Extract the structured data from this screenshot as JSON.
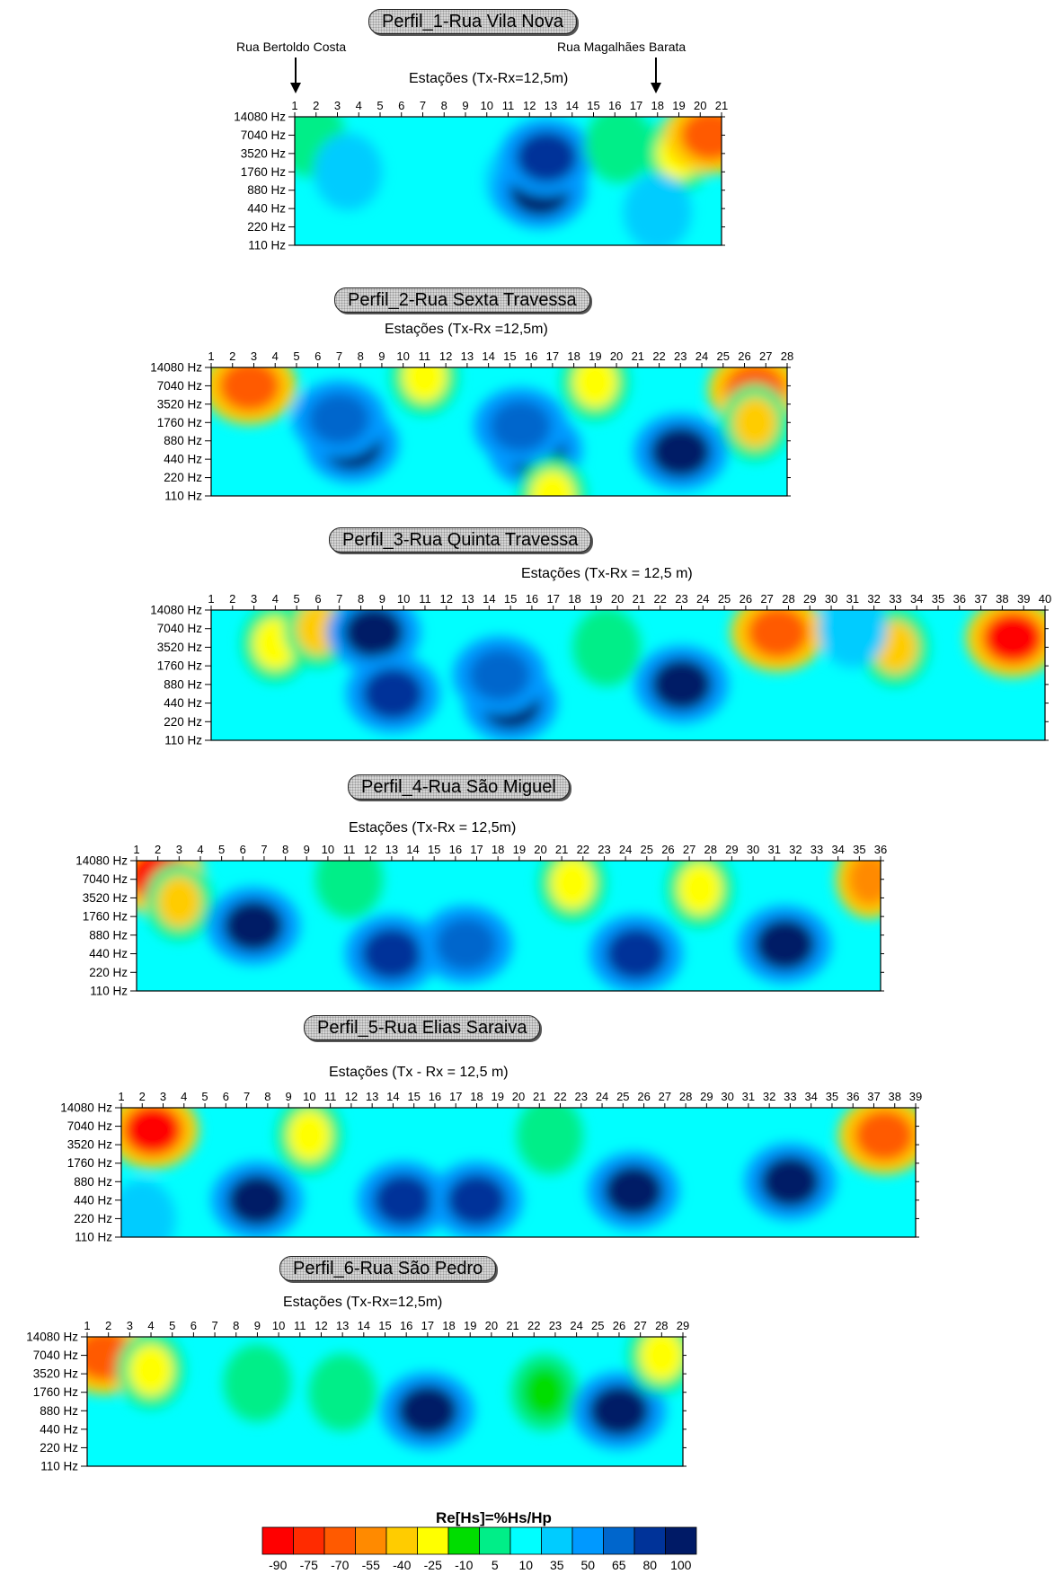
{
  "legend": {
    "title": "Re[Hs]=%Hs/Hp",
    "ticks": [
      "-90",
      "-75",
      "-70",
      "-55",
      "-40",
      "-25",
      "-10",
      "5",
      "10",
      "35",
      "50",
      "65",
      "80",
      "100"
    ],
    "colors": [
      "#ff0000",
      "#ff2b00",
      "#ff5a00",
      "#ff8a00",
      "#ffcc00",
      "#ffff00",
      "#00dd00",
      "#00ee88",
      "#00ffff",
      "#00ccff",
      "#0099ff",
      "#0066cc",
      "#003399",
      "#001a66"
    ]
  },
  "chart_data": [
    {
      "type": "heatmap",
      "title": "Perfil_1-Rua Vila Nova",
      "xlabel": "Estações (Tx-Rx=12,5m)",
      "stations": 21,
      "ylabels": [
        "14080 Hz",
        "7040 Hz",
        "3520 Hz",
        "1760 Hz",
        "880 Hz",
        "440 Hz",
        "220 Hz",
        "110 Hz"
      ],
      "annotations": [
        {
          "text": "Rua Bertoldo Costa",
          "station": 1
        },
        {
          "text": "Rua Magalhães Barata",
          "station": 18
        }
      ],
      "anomalies": [
        {
          "station": 1.8,
          "freq": 1.2,
          "value": 5
        },
        {
          "station": 3.5,
          "freq": 3.0,
          "value": 35
        },
        {
          "station": 11.5,
          "freq": 3.5,
          "value": 50
        },
        {
          "station": 12.5,
          "freq": 4.0,
          "value": 100
        },
        {
          "station": 12.8,
          "freq": 2.2,
          "value": 80
        },
        {
          "station": 16.2,
          "freq": 1.5,
          "value": 5
        },
        {
          "station": 19.0,
          "freq": 2.0,
          "value": -25
        },
        {
          "station": 20.5,
          "freq": 1.0,
          "value": -70
        },
        {
          "station": 18.0,
          "freq": 5.2,
          "value": 35
        }
      ]
    },
    {
      "type": "heatmap",
      "title": "Perfil_2-Rua Sexta Travessa",
      "xlabel": "Estações (Tx-Rx =12,5m)",
      "stations": 28,
      "ylabels": [
        "14080 Hz",
        "7040 Hz",
        "3520 Hz",
        "1760 Hz",
        "880 Hz",
        "440 Hz",
        "220 Hz",
        "110 Hz"
      ],
      "anomalies": [
        {
          "station": 2.5,
          "freq": 0.8,
          "value": -40
        },
        {
          "station": 2.8,
          "freq": 1.0,
          "value": -70
        },
        {
          "station": 7.6,
          "freq": 4.2,
          "value": 100
        },
        {
          "station": 7.0,
          "freq": 2.8,
          "value": 65
        },
        {
          "station": 16.2,
          "freq": 4.5,
          "value": 100
        },
        {
          "station": 15.5,
          "freq": 3.2,
          "value": 65
        },
        {
          "station": 23.0,
          "freq": 4.6,
          "value": 100
        },
        {
          "station": 26.5,
          "freq": 1.2,
          "value": -70
        },
        {
          "station": 26.5,
          "freq": 3.0,
          "value": -40
        },
        {
          "station": 19.0,
          "freq": 0.8,
          "value": -25
        },
        {
          "station": 11.0,
          "freq": 0.5,
          "value": -25
        },
        {
          "station": 17.0,
          "freq": 7.0,
          "value": -25
        }
      ]
    },
    {
      "type": "heatmap",
      "title": "Perfil_3-Rua Quinta Travessa",
      "xlabel": "Estações (Tx-Rx = 12,5 m)",
      "stations": 40,
      "ylabels": [
        "14080 Hz",
        "7040 Hz",
        "3520 Hz",
        "1760 Hz",
        "880 Hz",
        "440 Hz",
        "220 Hz",
        "110 Hz"
      ],
      "anomalies": [
        {
          "station": 4.0,
          "freq": 1.8,
          "value": -25
        },
        {
          "station": 6.0,
          "freq": 1.0,
          "value": -40
        },
        {
          "station": 8.6,
          "freq": 1.2,
          "value": 100
        },
        {
          "station": 9.5,
          "freq": 4.5,
          "value": 80
        },
        {
          "station": 15.0,
          "freq": 5.0,
          "value": 100
        },
        {
          "station": 14.5,
          "freq": 3.5,
          "value": 65
        },
        {
          "station": 23.0,
          "freq": 4.0,
          "value": 100
        },
        {
          "station": 19.5,
          "freq": 2.0,
          "value": 5
        },
        {
          "station": 27.5,
          "freq": 1.2,
          "value": -70
        },
        {
          "station": 33.0,
          "freq": 2.0,
          "value": -40
        },
        {
          "station": 38.5,
          "freq": 1.5,
          "value": -90
        },
        {
          "station": 31.0,
          "freq": 1.0,
          "value": 35
        }
      ]
    },
    {
      "type": "heatmap",
      "title": "Perfil_4-Rua São Miguel",
      "xlabel": "Estações (Tx-Rx = 12,5m)",
      "stations": 36,
      "ylabels": [
        "14080 Hz",
        "7040 Hz",
        "3520 Hz",
        "1760 Hz",
        "880 Hz",
        "440 Hz",
        "220 Hz",
        "110 Hz"
      ],
      "anomalies": [
        {
          "station": 2.0,
          "freq": 0.8,
          "value": -90
        },
        {
          "station": 3.0,
          "freq": 2.2,
          "value": -40
        },
        {
          "station": 6.5,
          "freq": 3.5,
          "value": 100
        },
        {
          "station": 13.0,
          "freq": 5.0,
          "value": 80
        },
        {
          "station": 16.5,
          "freq": 4.5,
          "value": 65
        },
        {
          "station": 24.5,
          "freq": 5.0,
          "value": 80
        },
        {
          "station": 21.5,
          "freq": 1.2,
          "value": -25
        },
        {
          "station": 27.5,
          "freq": 1.5,
          "value": -25
        },
        {
          "station": 31.5,
          "freq": 4.5,
          "value": 100
        },
        {
          "station": 35.5,
          "freq": 1.0,
          "value": -55
        },
        {
          "station": 11.0,
          "freq": 1.0,
          "value": 5
        }
      ]
    },
    {
      "type": "heatmap",
      "title": "Perfil_5-Rua Elias Saraiva",
      "xlabel": "Estações (Tx - Rx = 12,5 m)",
      "stations": 39,
      "ylabels": [
        "14080 Hz",
        "7040 Hz",
        "3520 Hz",
        "1760 Hz",
        "880 Hz",
        "440 Hz",
        "220 Hz",
        "110 Hz"
      ],
      "anomalies": [
        {
          "station": 2.5,
          "freq": 1.2,
          "value": -90
        },
        {
          "station": 10.0,
          "freq": 1.5,
          "value": -25
        },
        {
          "station": 7.5,
          "freq": 5.0,
          "value": 100
        },
        {
          "station": 14.5,
          "freq": 5.0,
          "value": 80
        },
        {
          "station": 18.0,
          "freq": 5.0,
          "value": 80
        },
        {
          "station": 25.5,
          "freq": 4.5,
          "value": 100
        },
        {
          "station": 33.0,
          "freq": 4.0,
          "value": 100
        },
        {
          "station": 21.5,
          "freq": 1.5,
          "value": 5
        },
        {
          "station": 37.5,
          "freq": 1.5,
          "value": -70
        },
        {
          "station": 2.0,
          "freq": 6.0,
          "value": 35
        }
      ]
    },
    {
      "type": "heatmap",
      "title": "Perfil_6-Rua São Pedro",
      "xlabel": "Estações (Tx-Rx=12,5m)",
      "stations": 29,
      "ylabels": [
        "14080 Hz",
        "7040 Hz",
        "3520 Hz",
        "1760 Hz",
        "880 Hz",
        "440 Hz",
        "220 Hz",
        "110 Hz"
      ],
      "anomalies": [
        {
          "station": 1.8,
          "freq": 1.0,
          "value": -70
        },
        {
          "station": 4.0,
          "freq": 1.8,
          "value": -25
        },
        {
          "station": 9.0,
          "freq": 2.5,
          "value": 5
        },
        {
          "station": 17.0,
          "freq": 4.0,
          "value": 100
        },
        {
          "station": 22.5,
          "freq": 3.0,
          "value": -10
        },
        {
          "station": 26.0,
          "freq": 4.0,
          "value": 100
        },
        {
          "station": 28.0,
          "freq": 1.0,
          "value": -25
        },
        {
          "station": 13.0,
          "freq": 3.0,
          "value": 5
        }
      ]
    }
  ]
}
